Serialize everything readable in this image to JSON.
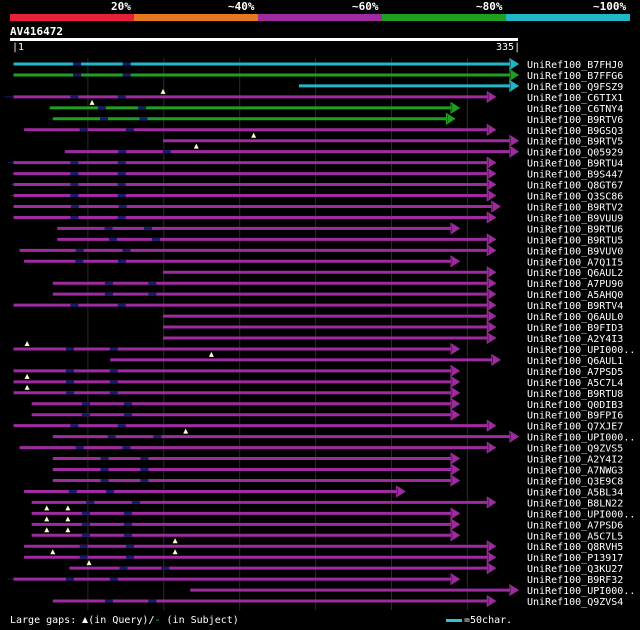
{
  "legend": [
    {
      "label": "20%",
      "color": "#e8213a"
    },
    {
      "label": "~40%",
      "color": "#e87820"
    },
    {
      "label": "~60%",
      "color": "#a02ba0"
    },
    {
      "label": "~80%",
      "color": "#20a020"
    },
    {
      "label": "~100%",
      "color": "#20b8c8"
    }
  ],
  "query": {
    "name": "AV416472",
    "start": "1",
    "end": "335"
  },
  "footer": {
    "prefix": "Large gaps: ",
    "query_gap": "(in Query)/",
    "subject_gap_dash": "-",
    "subject_gap": " (in Subject)",
    "scale": "=50char."
  },
  "chart_data": {
    "type": "alignment",
    "query_length": 335,
    "hits": [
      {
        "name": "UniRef100_B7FHJ0",
        "color": "#20b8c8",
        "start": 1,
        "end": 335,
        "tail_start": 1,
        "tail_end": 0,
        "gaps": []
      },
      {
        "name": "UniRef100_B7FFG6",
        "color": "#20a020",
        "start": 1,
        "end": 335,
        "tail_start": 1,
        "tail_end": 0,
        "gaps": []
      },
      {
        "name": "UniRef100_Q9FSZ9",
        "color": "#20b8c8",
        "start": 190,
        "end": 335,
        "tail_start": 190,
        "tail_end": 0,
        "gaps": []
      },
      {
        "name": "UniRef100_C6TIX1",
        "color": "#a02ba0",
        "start": 1,
        "end": 320,
        "tail_start": -5,
        "tail_end": 0,
        "gaps": [
          100
        ]
      },
      {
        "name": "UniRef100_C6TNY4",
        "color": "#20a020",
        "start": 25,
        "end": 296,
        "tail_start": 25,
        "tail_end": 0,
        "gaps": [
          53
        ]
      },
      {
        "name": "UniRef100_B9RTV6",
        "color": "#20a020",
        "start": 27,
        "end": 293,
        "tail_start": 27,
        "tail_end": 0,
        "gaps": []
      },
      {
        "name": "UniRef100_B9GSQ3",
        "color": "#a02ba0",
        "start": 8,
        "end": 320,
        "tail_start": 8,
        "tail_end": 0,
        "gaps": []
      },
      {
        "name": "UniRef100_B9RTV5",
        "color": "#a02ba0",
        "start": 100,
        "end": 335,
        "tail_start": 100,
        "tail_end": 0,
        "gaps": [
          160
        ]
      },
      {
        "name": "UniRef100_Q05929",
        "color": "#a02ba0",
        "start": 35,
        "end": 335,
        "tail_start": 35,
        "tail_end": 0,
        "gaps": [
          122
        ]
      },
      {
        "name": "UniRef100_B9RTU4",
        "color": "#a02ba0",
        "start": 1,
        "end": 320,
        "tail_start": -3,
        "tail_end": 0,
        "gaps": []
      },
      {
        "name": "UniRef100_B9S447",
        "color": "#a02ba0",
        "start": 1,
        "end": 320,
        "tail_start": -1,
        "tail_end": 0,
        "gaps": []
      },
      {
        "name": "UniRef100_Q8GT67",
        "color": "#a02ba0",
        "start": 1,
        "end": 320,
        "tail_start": -1,
        "tail_end": 0,
        "gaps": []
      },
      {
        "name": "UniRef100_Q3SC86",
        "color": "#a02ba0",
        "start": 1,
        "end": 320,
        "tail_start": -1,
        "tail_end": 0,
        "gaps": []
      },
      {
        "name": "UniRef100_B9RTV2",
        "color": "#a02ba0",
        "start": 1,
        "end": 323,
        "tail_start": 10,
        "tail_end": 0,
        "gaps": []
      },
      {
        "name": "UniRef100_B9VUU9",
        "color": "#a02ba0",
        "start": 1,
        "end": 320,
        "tail_start": 1,
        "tail_end": 0,
        "gaps": []
      },
      {
        "name": "UniRef100_B9RTU6",
        "color": "#a02ba0",
        "start": 30,
        "end": 296,
        "tail_start": 30,
        "tail_end": 0,
        "gaps": []
      },
      {
        "name": "UniRef100_B9RTU5",
        "color": "#a02ba0",
        "start": 30,
        "end": 320,
        "tail_start": 30,
        "tail_end": 0,
        "gaps": []
      },
      {
        "name": "UniRef100_B9VUV0",
        "color": "#a02ba0",
        "start": 5,
        "end": 320,
        "tail_start": 5,
        "tail_end": 0,
        "gaps": []
      },
      {
        "name": "UniRef100_A7Q1I5",
        "color": "#a02ba0",
        "start": 8,
        "end": 296,
        "tail_start": 8,
        "tail_end": 0,
        "gaps": []
      },
      {
        "name": "UniRef100_Q6AUL2",
        "color": "#a02ba0",
        "start": 100,
        "end": 320,
        "tail_start": 100,
        "tail_end": 0,
        "gaps": []
      },
      {
        "name": "UniRef100_A7PU90",
        "color": "#a02ba0",
        "start": 27,
        "end": 320,
        "tail_start": 27,
        "tail_end": 0,
        "gaps": []
      },
      {
        "name": "UniRef100_A5AHQ0",
        "color": "#a02ba0",
        "start": 27,
        "end": 320,
        "tail_start": 27,
        "tail_end": 0,
        "gaps": []
      },
      {
        "name": "UniRef100_B9RTV4",
        "color": "#a02ba0",
        "start": 1,
        "end": 320,
        "tail_start": 1,
        "tail_end": 0,
        "gaps": []
      },
      {
        "name": "UniRef100_Q6AUL0",
        "color": "#a02ba0",
        "start": 100,
        "end": 320,
        "tail_start": 100,
        "tail_end": 0,
        "gaps": []
      },
      {
        "name": "UniRef100_B9FID3",
        "color": "#a02ba0",
        "start": 100,
        "end": 320,
        "tail_start": 100,
        "tail_end": 0,
        "gaps": []
      },
      {
        "name": "UniRef100_A2Y4I3",
        "color": "#a02ba0",
        "start": 100,
        "end": 320,
        "tail_start": 100,
        "tail_end": 0,
        "gaps": []
      },
      {
        "name": "UniRef100_UPI000..",
        "color": "#a02ba0",
        "start": 1,
        "end": 296,
        "tail_start": 1,
        "tail_end": 0,
        "gaps": [
          10
        ]
      },
      {
        "name": "UniRef100_Q6AUL1",
        "color": "#a02ba0",
        "start": 65,
        "end": 323,
        "tail_start": 65,
        "tail_end": 0,
        "gaps": [
          132
        ]
      },
      {
        "name": "UniRef100_A7PSD5",
        "color": "#a02ba0",
        "start": 1,
        "end": 296,
        "tail_start": 1,
        "tail_end": 0,
        "gaps": []
      },
      {
        "name": "UniRef100_A5C7L4",
        "color": "#a02ba0",
        "start": 1,
        "end": 296,
        "tail_start": 1,
        "tail_end": 0,
        "gaps": [
          10
        ]
      },
      {
        "name": "UniRef100_B9RTU8",
        "color": "#a02ba0",
        "start": 1,
        "end": 296,
        "tail_start": 1,
        "tail_end": 0,
        "gaps": [
          10
        ]
      },
      {
        "name": "UniRef100_Q0DIB3",
        "color": "#a02ba0",
        "start": 13,
        "end": 296,
        "tail_start": 13,
        "tail_end": 0,
        "gaps": []
      },
      {
        "name": "UniRef100_B9FPI6",
        "color": "#a02ba0",
        "start": 13,
        "end": 296,
        "tail_start": 13,
        "tail_end": 0,
        "gaps": []
      },
      {
        "name": "UniRef100_Q7XJE7",
        "color": "#a02ba0",
        "start": 1,
        "end": 320,
        "tail_start": 1,
        "tail_end": 0,
        "gaps": []
      },
      {
        "name": "UniRef100_UPI000..",
        "color": "#a02ba0",
        "start": 27,
        "end": 335,
        "tail_start": 27,
        "tail_end": 0,
        "gaps": [
          115
        ]
      },
      {
        "name": "UniRef100_Q9ZVS5",
        "color": "#a02ba0",
        "start": 5,
        "end": 320,
        "tail_start": 5,
        "tail_end": 0,
        "gaps": []
      },
      {
        "name": "UniRef100_A2Y4I2",
        "color": "#a02ba0",
        "start": 27,
        "end": 296,
        "tail_start": 27,
        "tail_end": 0,
        "gaps": []
      },
      {
        "name": "UniRef100_A7NWG3",
        "color": "#a02ba0",
        "start": 27,
        "end": 296,
        "tail_start": 27,
        "tail_end": 0,
        "gaps": []
      },
      {
        "name": "UniRef100_Q3E9C8",
        "color": "#a02ba0",
        "start": 27,
        "end": 296,
        "tail_start": 27,
        "tail_end": 0,
        "gaps": []
      },
      {
        "name": "UniRef100_A5BL34",
        "color": "#a02ba0",
        "start": 8,
        "end": 260,
        "tail_start": 8,
        "tail_end": 0,
        "gaps": []
      },
      {
        "name": "UniRef100_B8LN22",
        "color": "#a02ba0",
        "start": 13,
        "end": 320,
        "tail_start": 13,
        "tail_end": 0,
        "gaps": []
      },
      {
        "name": "UniRef100_UPI000..",
        "color": "#a02ba0",
        "start": 13,
        "end": 296,
        "tail_start": 13,
        "tail_end": 0,
        "gaps": [
          23,
          37
        ]
      },
      {
        "name": "UniRef100_A7PSD6",
        "color": "#a02ba0",
        "start": 13,
        "end": 296,
        "tail_start": 13,
        "tail_end": 0,
        "gaps": [
          23,
          37
        ]
      },
      {
        "name": "UniRef100_A5C7L5",
        "color": "#a02ba0",
        "start": 13,
        "end": 296,
        "tail_start": 13,
        "tail_end": 0,
        "gaps": [
          23,
          37
        ]
      },
      {
        "name": "UniRef100_Q8RVH5",
        "color": "#a02ba0",
        "start": 8,
        "end": 320,
        "tail_start": 8,
        "tail_end": 0,
        "gaps": [
          108
        ]
      },
      {
        "name": "UniRef100_P13917",
        "color": "#a02ba0",
        "start": 8,
        "end": 320,
        "tail_start": 8,
        "tail_end": 0,
        "gaps": [
          27,
          108
        ]
      },
      {
        "name": "UniRef100_Q3KU27",
        "color": "#a02ba0",
        "start": 38,
        "end": 320,
        "tail_start": 38,
        "tail_end": 0,
        "gaps": [
          51
        ]
      },
      {
        "name": "UniRef100_B9RF32",
        "color": "#a02ba0",
        "start": 1,
        "end": 296,
        "tail_start": -3,
        "tail_end": 0,
        "gaps": []
      },
      {
        "name": "UniRef100_UPI000..",
        "color": "#a02ba0",
        "start": 118,
        "end": 335,
        "tail_start": 118,
        "tail_end": 0,
        "gaps": []
      },
      {
        "name": "UniRef100_Q9ZVS4",
        "color": "#a02ba0",
        "start": 27,
        "end": 320,
        "tail_start": 27,
        "tail_end": 0,
        "gaps": []
      }
    ]
  }
}
